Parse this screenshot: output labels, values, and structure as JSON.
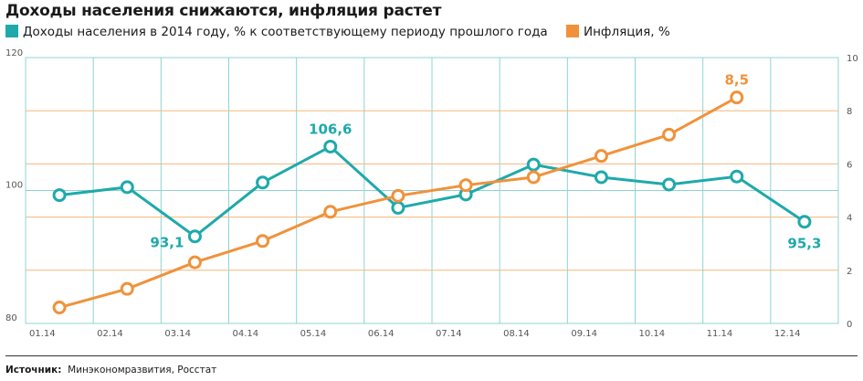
{
  "title": "Доходы населения снижаются, инфляция растет",
  "legend": [
    {
      "label": "Доходы населения в 2014 году, % к соответствующему периоду прошлого года",
      "color": "#1fa9ab"
    },
    {
      "label": "Инфляция, %",
      "color": "#f0923a"
    }
  ],
  "source": {
    "label": "Источник:",
    "text": "Минэкономразвития, Росстат"
  },
  "colors": {
    "teal": "#1fa9ab",
    "orange": "#f0923a",
    "grid_left": "#8fd3d3",
    "grid_right": "#f5b77a"
  },
  "chart_data": {
    "type": "line",
    "categories": [
      "01.14",
      "02.14",
      "03.14",
      "04.14",
      "05.14",
      "06.14",
      "07.14",
      "08.14",
      "09.14",
      "10.14",
      "11.14",
      "12.14"
    ],
    "y_left": {
      "ylim": [
        80,
        120
      ],
      "ticks": [
        "120",
        "100",
        "80"
      ]
    },
    "y_right": {
      "ylim": [
        0,
        10
      ],
      "ticks": [
        "10",
        "8",
        "6",
        "4",
        "2",
        "0"
      ]
    },
    "series": [
      {
        "axis": "left",
        "color": "#1fa9ab",
        "points": [
          {
            "cat": "01.14",
            "value": 99.3
          },
          {
            "cat": "02.14",
            "value": 100.5
          },
          {
            "cat": "03.14",
            "value": 93.1,
            "label": "93,1"
          },
          {
            "cat": "04.14",
            "value": 101.2
          },
          {
            "cat": "05.14",
            "value": 106.6,
            "label": "106,6"
          },
          {
            "cat": "06.14",
            "value": 97.4
          },
          {
            "cat": "07.14",
            "value": 99.4
          },
          {
            "cat": "08.14",
            "value": 103.9
          },
          {
            "cat": "09.14",
            "value": 102.0
          },
          {
            "cat": "10.14",
            "value": 100.9
          },
          {
            "cat": "11.14",
            "value": 102.1
          },
          {
            "cat": "12.14",
            "value": 95.3,
            "label": "95,3"
          }
        ]
      },
      {
        "axis": "right",
        "color": "#f0923a",
        "points": [
          {
            "cat": "01.14",
            "value": 0.6
          },
          {
            "cat": "02.14",
            "value": 1.3
          },
          {
            "cat": "03.14",
            "value": 2.3
          },
          {
            "cat": "04.14",
            "value": 3.1
          },
          {
            "cat": "05.14",
            "value": 4.2
          },
          {
            "cat": "06.14",
            "value": 4.8
          },
          {
            "cat": "07.14",
            "value": 5.2
          },
          {
            "cat": "08.14",
            "value": 5.5
          },
          {
            "cat": "09.14",
            "value": 6.3
          },
          {
            "cat": "10.14",
            "value": 7.1
          },
          {
            "cat": "11.14",
            "value": 8.5,
            "label": "8,5"
          }
        ]
      }
    ]
  }
}
